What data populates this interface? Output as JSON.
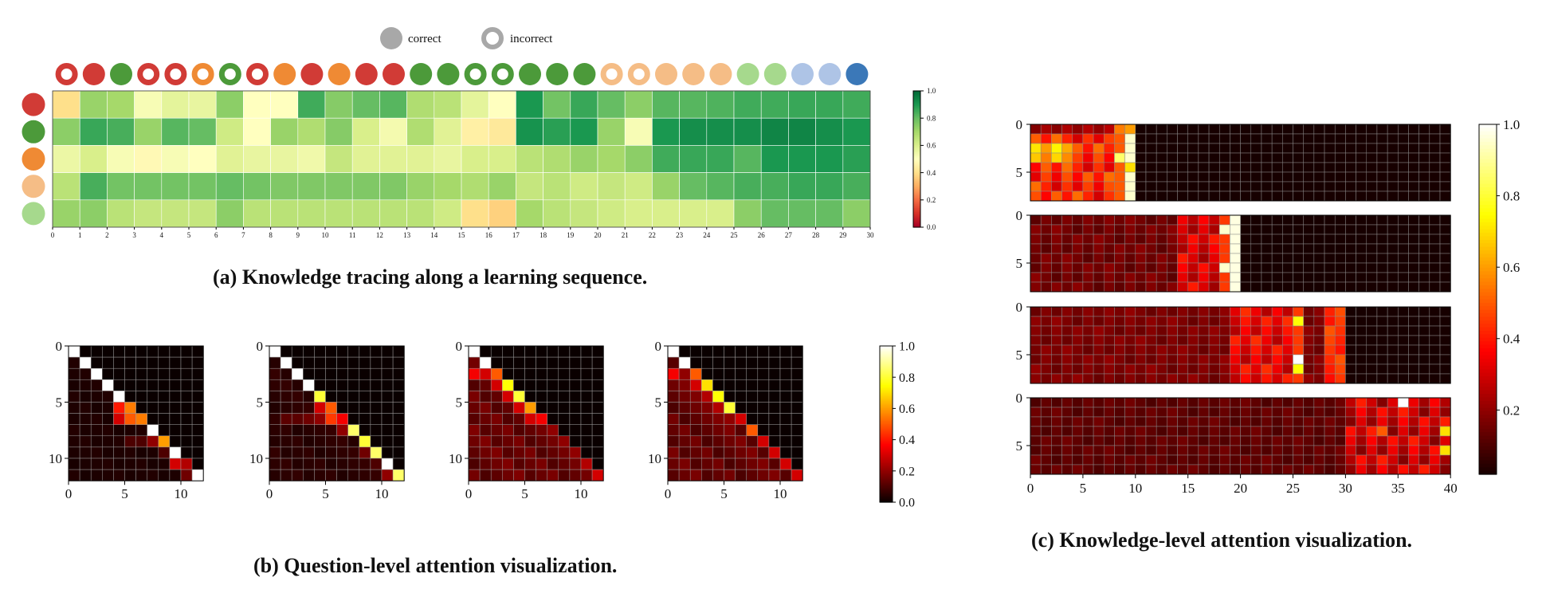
{
  "chart_data": [
    {
      "id": "a",
      "type": "heatmap",
      "caption": "(a) Knowledge tracing along a learning sequence.",
      "legend": [
        {
          "label": "correct",
          "marker": "filled"
        },
        {
          "label": "incorrect",
          "marker": "ring"
        }
      ],
      "x_ticks": [
        "0",
        "1",
        "2",
        "3",
        "4",
        "5",
        "6",
        "7",
        "8",
        "9",
        "10",
        "11",
        "12",
        "13",
        "14",
        "15",
        "16",
        "17",
        "18",
        "19",
        "20",
        "21",
        "22",
        "23",
        "24",
        "25",
        "26",
        "27",
        "28",
        "29",
        "30"
      ],
      "row_concept_colors": [
        "#d13b36",
        "#4c9a3a",
        "#ef8a34",
        "#f5bd86",
        "#a6d98d"
      ],
      "sequence": [
        {
          "color": "#d13b36",
          "correct": false
        },
        {
          "color": "#d13b36",
          "correct": true
        },
        {
          "color": "#4c9a3a",
          "correct": true
        },
        {
          "color": "#d13b36",
          "correct": false
        },
        {
          "color": "#d13b36",
          "correct": false
        },
        {
          "color": "#ef8a34",
          "correct": false
        },
        {
          "color": "#4c9a3a",
          "correct": false
        },
        {
          "color": "#d13b36",
          "correct": false
        },
        {
          "color": "#ef8a34",
          "correct": true
        },
        {
          "color": "#d13b36",
          "correct": true
        },
        {
          "color": "#ef8a34",
          "correct": true
        },
        {
          "color": "#d13b36",
          "correct": true
        },
        {
          "color": "#d13b36",
          "correct": true
        },
        {
          "color": "#4c9a3a",
          "correct": true
        },
        {
          "color": "#4c9a3a",
          "correct": true
        },
        {
          "color": "#4c9a3a",
          "correct": false
        },
        {
          "color": "#4c9a3a",
          "correct": false
        },
        {
          "color": "#4c9a3a",
          "correct": true
        },
        {
          "color": "#4c9a3a",
          "correct": true
        },
        {
          "color": "#4c9a3a",
          "correct": true
        },
        {
          "color": "#f5bd86",
          "correct": false
        },
        {
          "color": "#f5bd86",
          "correct": false
        },
        {
          "color": "#f5bd86",
          "correct": true
        },
        {
          "color": "#f5bd86",
          "correct": true
        },
        {
          "color": "#f5bd86",
          "correct": true
        },
        {
          "color": "#a6d98d",
          "correct": true
        },
        {
          "color": "#a6d98d",
          "correct": true
        },
        {
          "color": "#aec4e6",
          "correct": true
        },
        {
          "color": "#aec4e6",
          "correct": true
        },
        {
          "color": "#3b78b8",
          "correct": true
        }
      ],
      "values": [
        [
          0.4,
          0.72,
          0.7,
          0.52,
          0.57,
          0.56,
          0.74,
          0.5,
          0.5,
          0.85,
          0.75,
          0.8,
          0.82,
          0.68,
          0.66,
          0.57,
          0.5,
          0.9,
          0.78,
          0.86,
          0.8,
          0.74,
          0.82,
          0.82,
          0.83,
          0.85,
          0.85,
          0.86,
          0.86,
          0.85
        ],
        [
          0.74,
          0.86,
          0.84,
          0.72,
          0.82,
          0.8,
          0.62,
          0.5,
          0.72,
          0.68,
          0.75,
          0.6,
          0.53,
          0.68,
          0.58,
          0.45,
          0.43,
          0.91,
          0.88,
          0.9,
          0.72,
          0.52,
          0.9,
          0.92,
          0.92,
          0.92,
          0.94,
          0.94,
          0.92,
          0.9
        ],
        [
          0.55,
          0.6,
          0.52,
          0.48,
          0.52,
          0.5,
          0.58,
          0.56,
          0.56,
          0.54,
          0.64,
          0.58,
          0.58,
          0.58,
          0.56,
          0.6,
          0.6,
          0.66,
          0.68,
          0.72,
          0.7,
          0.74,
          0.85,
          0.86,
          0.86,
          0.82,
          0.9,
          0.9,
          0.9,
          0.88
        ],
        [
          0.66,
          0.84,
          0.78,
          0.78,
          0.78,
          0.78,
          0.8,
          0.78,
          0.76,
          0.76,
          0.76,
          0.76,
          0.76,
          0.72,
          0.7,
          0.68,
          0.72,
          0.64,
          0.66,
          0.62,
          0.64,
          0.62,
          0.72,
          0.8,
          0.82,
          0.84,
          0.84,
          0.86,
          0.86,
          0.84
        ],
        [
          0.72,
          0.74,
          0.66,
          0.64,
          0.64,
          0.64,
          0.74,
          0.66,
          0.66,
          0.66,
          0.66,
          0.66,
          0.66,
          0.66,
          0.62,
          0.4,
          0.37,
          0.7,
          0.66,
          0.64,
          0.62,
          0.6,
          0.6,
          0.6,
          0.6,
          0.74,
          0.8,
          0.8,
          0.8,
          0.74
        ]
      ],
      "colorbar_ticks": [
        "0.0",
        "0.2",
        "0.4",
        "0.6",
        "0.8",
        "1.0"
      ],
      "colormap": "RdYlGn",
      "vmin": 0,
      "vmax": 1
    },
    {
      "id": "b",
      "type": "heatmap",
      "caption": "(b) Question-level attention visualization.",
      "size": 12,
      "colormap": "hot",
      "x_ticks": [
        "0",
        "5",
        "10"
      ],
      "y_ticks": [
        "0",
        "5",
        "10"
      ],
      "colorbar_ticks": [
        "0.0",
        "0.2",
        "0.4",
        "0.6",
        "0.8",
        "1.0"
      ],
      "panels": [
        {
          "diag": [
            1,
            1,
            1,
            1,
            1,
            0.55,
            0.55,
            1,
            0.6,
            1,
            0.25,
            1
          ],
          "off": [
            [
              5,
              4,
              0.4
            ],
            [
              6,
              4,
              0.3
            ],
            [
              6,
              5,
              0.5
            ],
            [
              8,
              7,
              0.2
            ],
            [
              8,
              6,
              0.1
            ],
            [
              8,
              5,
              0.1
            ],
            [
              10,
              9,
              0.3
            ],
            [
              11,
              10,
              0.15
            ],
            [
              9,
              8,
              0.1
            ]
          ],
          "floor": 0.03
        },
        {
          "diag": [
            1,
            1,
            1,
            1,
            0.8,
            0.5,
            0.35,
            0.85,
            0.8,
            0.85,
            1,
            0.85
          ],
          "off": [
            [
              6,
              5,
              0.45
            ],
            [
              6,
              4,
              0.2
            ],
            [
              6,
              3,
              0.15
            ],
            [
              6,
              2,
              0.12
            ],
            [
              6,
              1,
              0.12
            ],
            [
              5,
              4,
              0.3
            ],
            [
              7,
              6,
              0.2
            ],
            [
              9,
              8,
              0.15
            ],
            [
              10,
              9,
              0.1
            ],
            [
              11,
              10,
              0.2
            ]
          ],
          "floor": 0.05
        },
        {
          "diag": [
            1,
            1,
            0.5,
            0.75,
            0.8,
            0.6,
            0.35,
            0.2,
            0.2,
            0.2,
            0.25,
            0.3
          ],
          "off": [
            [
              2,
              0,
              0.35
            ],
            [
              2,
              1,
              0.3
            ],
            [
              3,
              2,
              0.3
            ],
            [
              4,
              3,
              0.3
            ],
            [
              5,
              4,
              0.3
            ],
            [
              6,
              5,
              0.3
            ]
          ],
          "floor": 0.14
        },
        {
          "diag": [
            1,
            1,
            0.5,
            0.7,
            0.75,
            0.8,
            0.3,
            0.5,
            0.3,
            0.3,
            0.3,
            0.3
          ],
          "off": [
            [
              2,
              0,
              0.35
            ],
            [
              2,
              1,
              0.2
            ],
            [
              3,
              2,
              0.3
            ],
            [
              4,
              3,
              0.25
            ],
            [
              5,
              4,
              0.25
            ],
            [
              6,
              5,
              0.2
            ]
          ],
          "floor": 0.14
        }
      ]
    },
    {
      "id": "c",
      "type": "heatmap",
      "caption": "(c) Knowledge-level attention visualization.",
      "rows": 8,
      "cols": 40,
      "colormap": "hot",
      "x_ticks": [
        "0",
        "5",
        "10",
        "15",
        "20",
        "25",
        "30",
        "35",
        "40"
      ],
      "y_ticks": [
        "0",
        "5"
      ],
      "colorbar_ticks": [
        "0.2",
        "0.4",
        "0.6",
        "0.8",
        "1.0"
      ],
      "panels": [
        {
          "active_cols": 10,
          "mode": "p1"
        },
        {
          "active_cols": 20,
          "mode": "p2"
        },
        {
          "active_cols": 30,
          "mode": "p3"
        },
        {
          "active_cols": 40,
          "mode": "p4"
        }
      ]
    }
  ]
}
